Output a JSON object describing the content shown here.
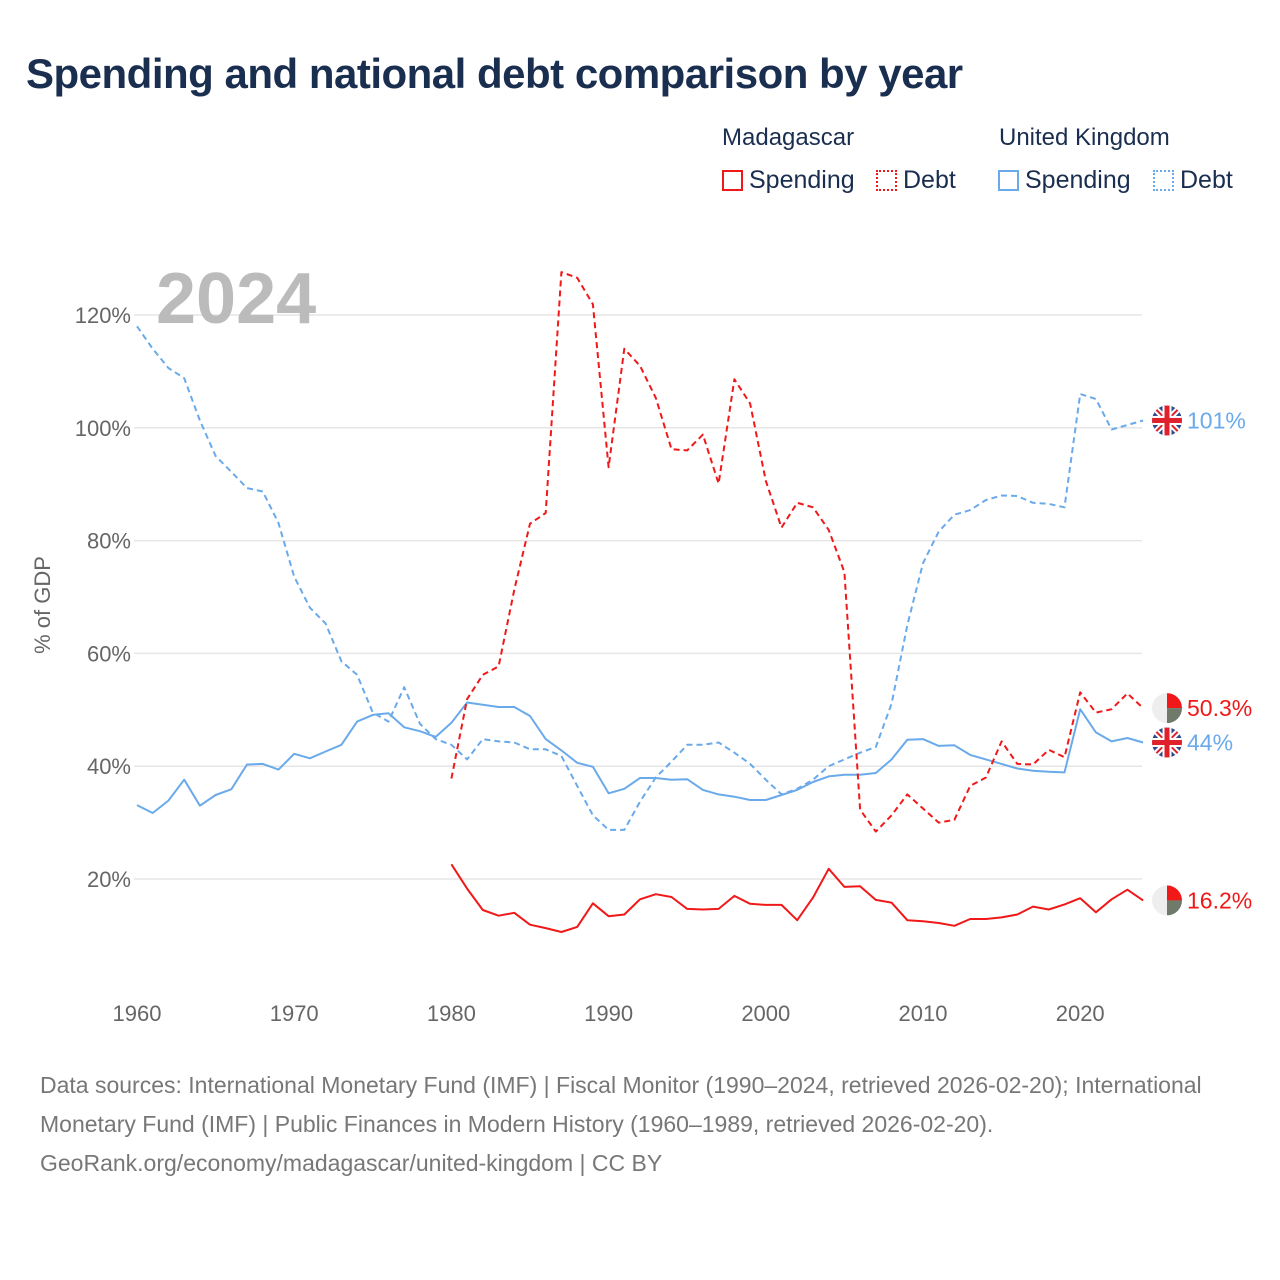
{
  "title": "Spending and national debt comparison by year",
  "legend": {
    "groups": [
      {
        "country": "Madagascar",
        "spending": "Spending",
        "debt": "Debt",
        "color": "#f01818"
      },
      {
        "country": "United Kingdom",
        "spending": "Spending",
        "debt": "Debt",
        "color": "#6aaaea"
      }
    ]
  },
  "footer": {
    "sources": "Data sources: International Monetary Fund (IMF) | Fiscal Monitor (1990–2024, retrieved 2026-02-20); International Monetary Fund (IMF) | Public Finances in Modern History (1960–1989, retrieved 2026-02-20).",
    "credit": "GeoRank.org/economy/madagascar/united-kingdom | CC BY"
  },
  "chart_data": {
    "type": "line",
    "year_label": "2024",
    "ylabel": "% of GDP",
    "xlim": [
      1960,
      2024
    ],
    "ylim": [
      0,
      125
    ],
    "x_ticks": [
      "1960",
      "1970",
      "1980",
      "1990",
      "2000",
      "2010",
      "2020"
    ],
    "y_ticks": [
      "20%",
      "40%",
      "60%",
      "80%",
      "100%",
      "120%"
    ],
    "grid": true,
    "series": [
      {
        "name": "United Kingdom Debt",
        "country": "United Kingdom",
        "kind": "debt",
        "color": "#6aaaea",
        "start": 1960,
        "end_label": "101%",
        "flag": "uk",
        "values": [
          118,
          114,
          110.6,
          108.8,
          101.3,
          95,
          92.2,
          89.3,
          88.7,
          83.1,
          73.6,
          68.1,
          65.3,
          58.6,
          56.2,
          49.5,
          47.9,
          54,
          47.5,
          44.8,
          43.8,
          41.2,
          44.8,
          44.4,
          44.2,
          43,
          43,
          41.8,
          36.5,
          31.3,
          28.7,
          28.7,
          33.7,
          38,
          40.8,
          43.8,
          43.8,
          44.2,
          42.4,
          40.4,
          37.6,
          35,
          36,
          37.6,
          40,
          41.2,
          42.4,
          43.4,
          51.1,
          65,
          76,
          81.6,
          84.6,
          85.4,
          87.2,
          88,
          87.9,
          86.7,
          86.5,
          85.9,
          106,
          105.1,
          99.7,
          100.5,
          101.3
        ]
      },
      {
        "name": "United Kingdom Spending",
        "country": "United Kingdom",
        "kind": "spending",
        "color": "#6aaaea",
        "start": 1960,
        "end_label": "44%",
        "flag": "uk",
        "values": [
          33.1,
          31.7,
          33.9,
          37.6,
          33,
          34.9,
          35.9,
          40.3,
          40.4,
          39.4,
          42.2,
          41.4,
          42.6,
          43.8,
          47.9,
          49.1,
          49.4,
          46.9,
          46.2,
          45.2,
          47.7,
          51.3,
          50.9,
          50.5,
          50.5,
          48.9,
          44.8,
          42.8,
          40.6,
          39.9,
          35.2,
          36,
          37.9,
          37.9,
          37.6,
          37.7,
          35.8,
          35,
          34.6,
          34,
          34,
          34.9,
          35.8,
          37.2,
          38.2,
          38.5,
          38.5,
          38.8,
          41.2,
          44.7,
          44.8,
          43.6,
          43.7,
          42,
          41.2,
          40.4,
          39.6,
          39.2,
          39,
          38.9,
          50.1,
          46,
          44.4,
          45,
          44.2
        ]
      },
      {
        "name": "Madagascar Debt",
        "country": "Madagascar",
        "kind": "debt",
        "color": "#f01818",
        "start": 1980,
        "end_label": "50.3%",
        "flag": "mg",
        "values": [
          37.8,
          51.9,
          56.2,
          57.7,
          71.3,
          83,
          84.9,
          127.6,
          126.6,
          121.9,
          93,
          114,
          111,
          105.3,
          96.2,
          96,
          98.8,
          90.1,
          108.6,
          104.3,
          90.6,
          82.3,
          86.7,
          85.9,
          81.9,
          74.4,
          32.3,
          28.4,
          31.3,
          35,
          32.5,
          30,
          30.5,
          36.5,
          38,
          44.4,
          40.4,
          40.3,
          42.9,
          41.6,
          53.1,
          49.5,
          50.1,
          52.9,
          50.3
        ]
      },
      {
        "name": "Madagascar Spending",
        "country": "Madagascar",
        "kind": "spending",
        "color": "#f01818",
        "start": 1980,
        "end_label": "16.2%",
        "flag": "mg",
        "values": [
          22.6,
          18.3,
          14.5,
          13.5,
          14,
          11.9,
          11.3,
          10.6,
          11.5,
          15.7,
          13.4,
          13.7,
          16.4,
          17.3,
          16.8,
          14.7,
          14.6,
          14.7,
          17,
          15.6,
          15.4,
          15.4,
          12.7,
          16.7,
          21.8,
          18.6,
          18.7,
          16.3,
          15.8,
          12.7,
          12.5,
          12.2,
          11.7,
          12.9,
          12.9,
          13.2,
          13.7,
          15.1,
          14.6,
          15.5,
          16.6,
          14.1,
          16.4,
          18.1,
          16.2
        ]
      }
    ]
  }
}
